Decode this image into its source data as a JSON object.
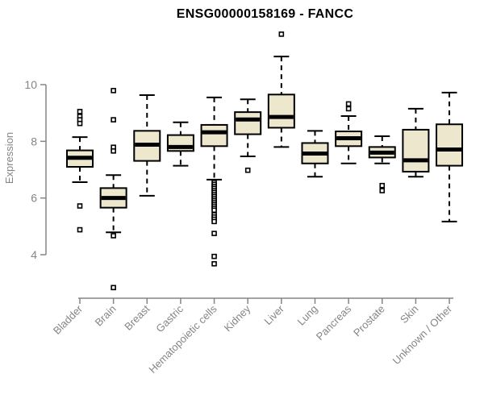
{
  "chart_data": {
    "type": "boxplot",
    "title": "ENSG00000158169 - FANCC",
    "ylabel": "Expression",
    "yticks": [
      4,
      6,
      8,
      10
    ],
    "ylim": [
      2.5,
      12.2
    ],
    "grid": false,
    "legend": "none",
    "categories": [
      "Bladder",
      "Brain",
      "Breast",
      "Gastric",
      "Hematopoietic cells",
      "Kidney",
      "Liver",
      "Lung",
      "Pancreas",
      "Prostate",
      "Skin",
      "Unknown / Other"
    ],
    "series": [
      {
        "label": "Bladder",
        "whisker_low": 6.56,
        "q1": 7.1,
        "median": 7.42,
        "q3": 7.68,
        "whisker_high": 8.15,
        "outliers": [
          9.05,
          8.88,
          8.76,
          8.63,
          5.72,
          4.88
        ]
      },
      {
        "label": "Brain",
        "whisker_low": 4.79,
        "q1": 5.66,
        "median": 6.0,
        "q3": 6.35,
        "whisker_high": 6.81,
        "outliers": [
          9.79,
          8.76,
          7.79,
          7.66,
          4.67,
          2.84
        ]
      },
      {
        "label": "Breast",
        "whisker_low": 6.08,
        "q1": 7.31,
        "median": 7.88,
        "q3": 8.37,
        "whisker_high": 9.63,
        "outliers": []
      },
      {
        "label": "Gastric",
        "whisker_low": 7.14,
        "q1": 7.66,
        "median": 7.8,
        "q3": 8.22,
        "whisker_high": 8.67,
        "outliers": []
      },
      {
        "label": "Hematopoietic cells",
        "whisker_low": 6.65,
        "q1": 7.83,
        "median": 8.32,
        "q3": 8.58,
        "whisker_high": 9.55,
        "outliers": [
          6.55,
          6.48,
          6.41,
          6.34,
          6.27,
          6.2,
          6.13,
          6.06,
          5.99,
          5.92,
          5.85,
          5.78,
          5.71,
          5.64,
          5.57,
          5.41,
          5.33,
          5.25,
          5.17,
          4.75,
          3.94,
          3.68
        ]
      },
      {
        "label": "Kidney",
        "whisker_low": 7.47,
        "q1": 8.25,
        "median": 8.77,
        "q3": 9.03,
        "whisker_high": 9.48,
        "outliers": [
          6.98
        ]
      },
      {
        "label": "Liver",
        "whisker_low": 7.8,
        "q1": 8.48,
        "median": 8.86,
        "q3": 9.65,
        "whisker_high": 10.99,
        "outliers": [
          11.78
        ]
      },
      {
        "label": "Lung",
        "whisker_low": 6.75,
        "q1": 7.22,
        "median": 7.57,
        "q3": 7.94,
        "whisker_high": 8.37,
        "outliers": []
      },
      {
        "label": "Pancreas",
        "whisker_low": 7.22,
        "q1": 7.83,
        "median": 8.11,
        "q3": 8.35,
        "whisker_high": 8.89,
        "outliers": [
          9.32,
          9.15
        ]
      },
      {
        "label": "Prostate",
        "whisker_low": 7.22,
        "q1": 7.43,
        "median": 7.6,
        "q3": 7.8,
        "whisker_high": 8.18,
        "outliers": [
          6.44,
          6.26
        ]
      },
      {
        "label": "Skin",
        "whisker_low": 6.75,
        "q1": 6.93,
        "median": 7.33,
        "q3": 8.41,
        "whisker_high": 9.15,
        "outliers": []
      },
      {
        "label": "Unknown / Other",
        "whisker_low": 5.17,
        "q1": 7.14,
        "median": 7.71,
        "q3": 8.6,
        "whisker_high": 9.72,
        "outliers": []
      }
    ],
    "colors": {
      "box_fill": "#EDE7CE",
      "box_stroke": "#000000",
      "median": "#000000",
      "outlier_fill": "#FFFFFF",
      "axis": "#858585",
      "title": "#000000",
      "background": "#FFFFFF"
    }
  }
}
